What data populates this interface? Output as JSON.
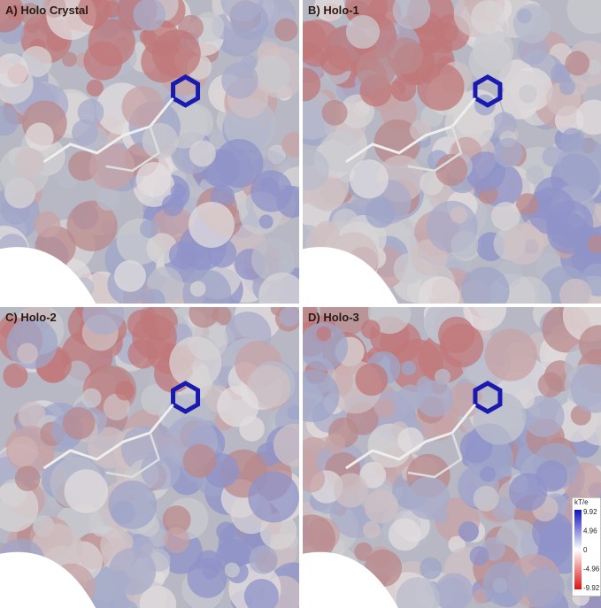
{
  "panels": [
    {
      "label": "A) Holo Crystal"
    },
    {
      "label": "B) Holo-1"
    },
    {
      "label": "C) Holo-2"
    },
    {
      "label": "D) Holo-3"
    }
  ],
  "color_scale": {
    "unit": "kT/e",
    "ticks": [
      9.92,
      4.96,
      0,
      -4.96,
      -9.92
    ]
  }
}
